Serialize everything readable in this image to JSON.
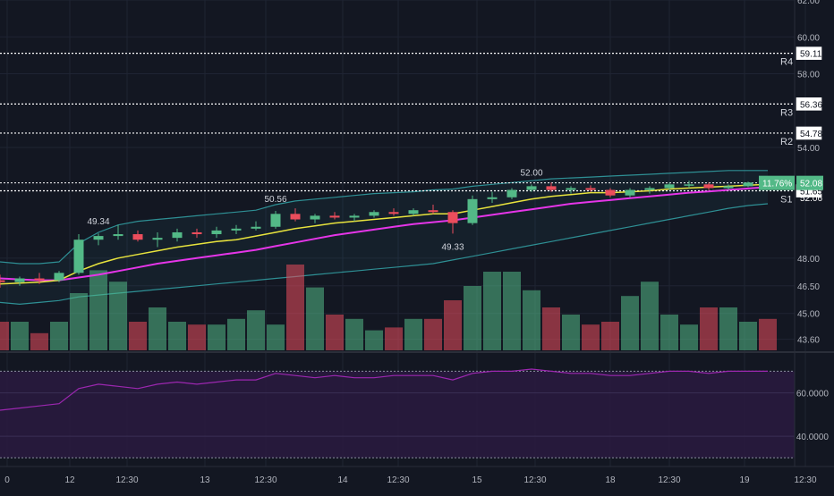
{
  "theme": {
    "background": "#131722",
    "grid": "#1f2433",
    "axis_text": "#b2b5be",
    "up": "#53b987",
    "down": "#eb4d5c",
    "ma_fast": "#e8e33d",
    "ma_slow": "#e535e8",
    "band": "#2e8f94",
    "rsi_line": "#9c27b0",
    "rsi_fill": "#2a1a3f",
    "level_line": "#ffffff",
    "price_badge": "#53b987"
  },
  "chart_data": {
    "type": "candlestick",
    "x_ticks": [
      "0",
      "12",
      "12:30",
      "13",
      "12:30",
      "14",
      "12:30",
      "15",
      "12:30",
      "18",
      "12:30",
      "19",
      "12:30"
    ],
    "price_axis": {
      "ticks": [
        "62.00",
        "60.00",
        "58.00",
        "54.00",
        "48.00",
        "46.50",
        "45.00",
        "43.60"
      ],
      "ylim": [
        43.0,
        62.0
      ]
    },
    "candles": [
      {
        "o": 46.8,
        "h": 47.1,
        "l": 46.4,
        "c": 46.7
      },
      {
        "o": 46.7,
        "h": 47.0,
        "l": 46.5,
        "c": 46.9
      },
      {
        "o": 46.9,
        "h": 47.2,
        "l": 46.6,
        "c": 46.8
      },
      {
        "o": 46.8,
        "h": 47.3,
        "l": 46.7,
        "c": 47.2
      },
      {
        "o": 47.2,
        "h": 49.3,
        "l": 47.1,
        "c": 49.0
      },
      {
        "o": 49.0,
        "h": 49.34,
        "l": 48.7,
        "c": 49.2
      },
      {
        "o": 49.2,
        "h": 49.8,
        "l": 49.0,
        "c": 49.3
      },
      {
        "o": 49.3,
        "h": 49.5,
        "l": 48.9,
        "c": 49.0
      },
      {
        "o": 49.0,
        "h": 49.4,
        "l": 48.6,
        "c": 49.1
      },
      {
        "o": 49.1,
        "h": 49.6,
        "l": 48.9,
        "c": 49.4
      },
      {
        "o": 49.4,
        "h": 49.6,
        "l": 49.1,
        "c": 49.3
      },
      {
        "o": 49.3,
        "h": 49.7,
        "l": 49.1,
        "c": 49.5
      },
      {
        "o": 49.5,
        "h": 49.8,
        "l": 49.3,
        "c": 49.6
      },
      {
        "o": 49.6,
        "h": 50.0,
        "l": 49.5,
        "c": 49.7
      },
      {
        "o": 49.7,
        "h": 50.56,
        "l": 49.6,
        "c": 50.4
      },
      {
        "o": 50.4,
        "h": 50.7,
        "l": 50.0,
        "c": 50.1
      },
      {
        "o": 50.1,
        "h": 50.4,
        "l": 49.9,
        "c": 50.3
      },
      {
        "o": 50.3,
        "h": 50.5,
        "l": 50.1,
        "c": 50.2
      },
      {
        "o": 50.2,
        "h": 50.4,
        "l": 50.0,
        "c": 50.3
      },
      {
        "o": 50.3,
        "h": 50.6,
        "l": 50.2,
        "c": 50.5
      },
      {
        "o": 50.5,
        "h": 50.7,
        "l": 50.3,
        "c": 50.4
      },
      {
        "o": 50.4,
        "h": 50.7,
        "l": 50.3,
        "c": 50.6
      },
      {
        "o": 50.6,
        "h": 50.9,
        "l": 50.4,
        "c": 50.5
      },
      {
        "o": 50.5,
        "h": 50.6,
        "l": 49.33,
        "c": 49.9
      },
      {
        "o": 49.9,
        "h": 51.4,
        "l": 49.8,
        "c": 51.2
      },
      {
        "o": 51.2,
        "h": 51.6,
        "l": 51.0,
        "c": 51.3
      },
      {
        "o": 51.3,
        "h": 51.8,
        "l": 51.2,
        "c": 51.7
      },
      {
        "o": 51.7,
        "h": 52.0,
        "l": 51.6,
        "c": 51.9
      },
      {
        "o": 51.9,
        "h": 52.1,
        "l": 51.6,
        "c": 51.7
      },
      {
        "o": 51.7,
        "h": 51.9,
        "l": 51.5,
        "c": 51.8
      },
      {
        "o": 51.8,
        "h": 51.95,
        "l": 51.6,
        "c": 51.7
      },
      {
        "o": 51.7,
        "h": 51.8,
        "l": 51.3,
        "c": 51.4
      },
      {
        "o": 51.4,
        "h": 51.8,
        "l": 51.3,
        "c": 51.7
      },
      {
        "o": 51.7,
        "h": 51.9,
        "l": 51.5,
        "c": 51.8
      },
      {
        "o": 51.8,
        "h": 52.1,
        "l": 51.7,
        "c": 52.0
      },
      {
        "o": 52.0,
        "h": 52.2,
        "l": 51.8,
        "c": 52.0
      },
      {
        "o": 52.0,
        "h": 52.1,
        "l": 51.7,
        "c": 51.8
      },
      {
        "o": 51.8,
        "h": 52.0,
        "l": 51.7,
        "c": 51.9
      },
      {
        "o": 51.9,
        "h": 52.15,
        "l": 51.85,
        "c": 52.1
      },
      {
        "o": 52.1,
        "h": 52.2,
        "l": 52.0,
        "c": 52.08
      }
    ],
    "ma_fast": [
      46.6,
      46.65,
      46.7,
      46.8,
      47.3,
      47.7,
      48.0,
      48.2,
      48.4,
      48.6,
      48.75,
      48.9,
      49.0,
      49.2,
      49.4,
      49.6,
      49.75,
      49.9,
      50.0,
      50.1,
      50.2,
      50.3,
      50.4,
      50.4,
      50.6,
      50.8,
      51.0,
      51.2,
      51.35,
      51.45,
      51.55,
      51.55,
      51.6,
      51.65,
      51.75,
      51.8,
      51.85,
      51.9,
      51.95,
      52.0
    ],
    "ma_slow": [
      46.9,
      46.85,
      46.8,
      46.8,
      46.95,
      47.1,
      47.3,
      47.5,
      47.7,
      47.85,
      48.0,
      48.15,
      48.3,
      48.45,
      48.65,
      48.85,
      49.05,
      49.25,
      49.4,
      49.55,
      49.7,
      49.85,
      49.95,
      50.05,
      50.2,
      50.35,
      50.5,
      50.65,
      50.8,
      50.95,
      51.05,
      51.15,
      51.25,
      51.35,
      51.45,
      51.55,
      51.62,
      51.7,
      51.78,
      51.86
    ],
    "band_upper": [
      47.8,
      47.7,
      47.7,
      47.8,
      48.8,
      49.4,
      49.8,
      50.0,
      50.1,
      50.2,
      50.3,
      50.4,
      50.5,
      50.6,
      50.9,
      51.1,
      51.2,
      51.3,
      51.4,
      51.5,
      51.55,
      51.6,
      51.7,
      51.75,
      51.9,
      52.0,
      52.1,
      52.2,
      52.3,
      52.35,
      52.4,
      52.45,
      52.5,
      52.55,
      52.6,
      52.65,
      52.7,
      52.75,
      52.75,
      52.75
    ],
    "band_lower": [
      45.6,
      45.5,
      45.6,
      45.7,
      45.9,
      46.0,
      46.1,
      46.2,
      46.3,
      46.4,
      46.5,
      46.6,
      46.7,
      46.8,
      46.9,
      47.0,
      47.1,
      47.2,
      47.3,
      47.4,
      47.5,
      47.6,
      47.7,
      47.9,
      48.1,
      48.3,
      48.5,
      48.7,
      48.9,
      49.1,
      49.3,
      49.5,
      49.7,
      49.9,
      50.1,
      50.3,
      50.5,
      50.7,
      50.85,
      50.95
    ],
    "volumes": [
      20,
      20,
      12,
      20,
      40,
      56,
      48,
      20,
      30,
      20,
      18,
      18,
      22,
      28,
      18,
      60,
      44,
      25,
      22,
      14,
      16,
      22,
      22,
      35,
      45,
      55,
      55,
      42,
      30,
      25,
      18,
      20,
      38,
      48,
      25,
      18,
      30,
      30,
      20,
      22
    ],
    "rsi": [
      52,
      53,
      54,
      55,
      62,
      64,
      63,
      62,
      64,
      65,
      64,
      65,
      66,
      66,
      69,
      68,
      67,
      68,
      67,
      67,
      68,
      68,
      68,
      66,
      69,
      70,
      70,
      71,
      70,
      69,
      69,
      68,
      68,
      69,
      70,
      70,
      69,
      70,
      70,
      70
    ],
    "rsi_axis": {
      "ticks": [
        "60.0000",
        "40.0000"
      ],
      "ylim": [
        26,
        78
      ]
    },
    "annotations": [
      {
        "label": "49.34",
        "index": 5,
        "value": 49.34,
        "pos": "above"
      },
      {
        "label": "50.56",
        "index": 14,
        "value": 50.56,
        "pos": "above"
      },
      {
        "label": "52.00",
        "index": 27,
        "value": 52.0,
        "pos": "above"
      },
      {
        "label": "49.33",
        "index": 23,
        "value": 49.33,
        "pos": "below"
      }
    ],
    "levels": [
      {
        "name": "R4",
        "price": 59.11,
        "label": "59.11"
      },
      {
        "name": "R3",
        "price": 56.36,
        "label": "56.36"
      },
      {
        "name": "R2",
        "price": 54.78,
        "label": "54.78"
      },
      {
        "name": "S1",
        "price": 51.65,
        "label": "51.65"
      }
    ],
    "extra_labels": [
      {
        "price": 52.06,
        "label": "52.06"
      }
    ],
    "last_price": {
      "price": 52.08,
      "label": "52.08",
      "change": "11.76%"
    }
  }
}
